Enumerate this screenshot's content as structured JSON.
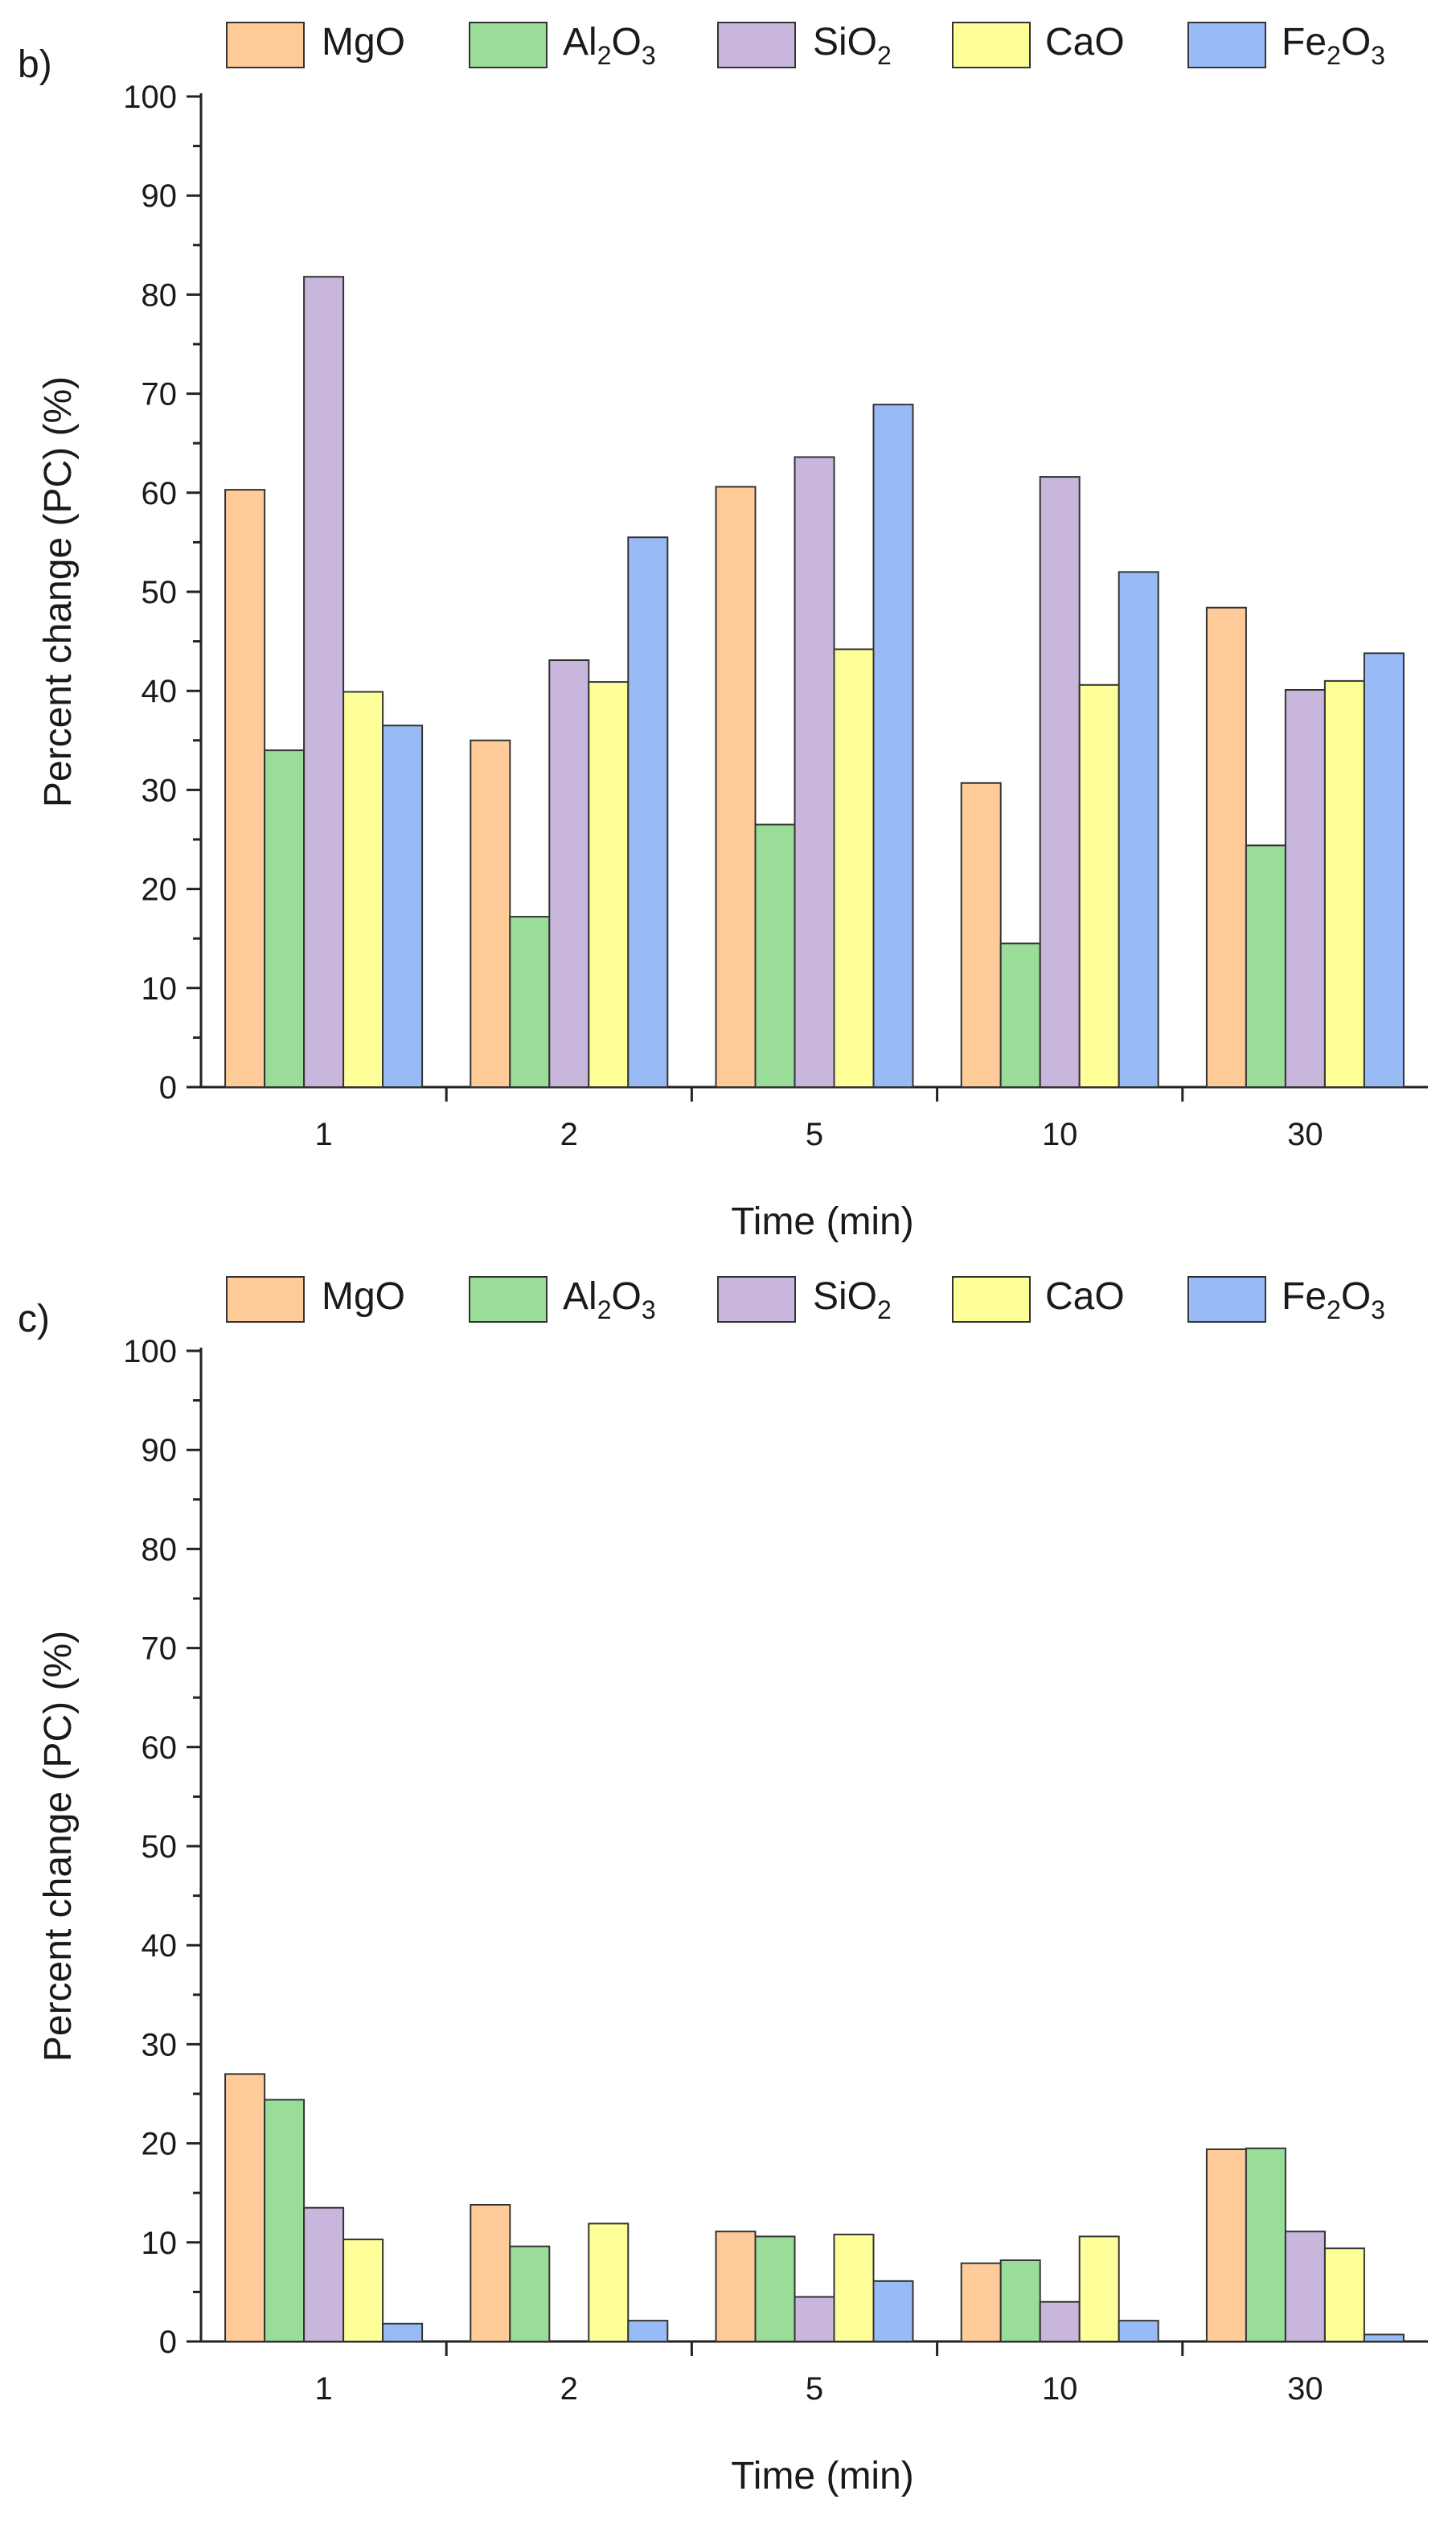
{
  "chart_data": [
    {
      "type": "bar",
      "panel_label": "b)",
      "xlabel": "Time (min)",
      "ylabel": "Percent change (PC) (%)",
      "ylim": [
        0,
        100
      ],
      "y_ticks": [
        "0",
        "10",
        "20",
        "30",
        "40",
        "50",
        "60",
        "70",
        "80",
        "90",
        "100"
      ],
      "categories": [
        "1",
        "2",
        "5",
        "10",
        "30"
      ],
      "legend_position": "top",
      "series": [
        {
          "name": "MgO",
          "base": "MgO",
          "sub": "",
          "tail": "",
          "color": "#FFCC99",
          "values": [
            60.3,
            35.0,
            60.6,
            30.7,
            48.4
          ]
        },
        {
          "name": "Al2O3",
          "base": "Al",
          "sub": "2",
          "tail": "O",
          "sub2": "3",
          "color": "#99DD99",
          "values": [
            34.0,
            17.2,
            26.5,
            14.5,
            24.4
          ]
        },
        {
          "name": "SiO2",
          "base": "SiO",
          "sub": "2",
          "tail": "",
          "color": "#C8B6DC",
          "values": [
            81.8,
            43.1,
            63.6,
            61.6,
            40.1
          ]
        },
        {
          "name": "CaO",
          "base": "CaO",
          "sub": "",
          "tail": "",
          "color": "#FFFF99",
          "values": [
            39.9,
            40.9,
            44.2,
            40.6,
            41.0
          ]
        },
        {
          "name": "Fe2O3",
          "base": "Fe",
          "sub": "2",
          "tail": "O",
          "sub2": "3",
          "color": "#99BBF5",
          "values": [
            36.5,
            55.5,
            68.9,
            52.0,
            43.8
          ]
        }
      ]
    },
    {
      "type": "bar",
      "panel_label": "c)",
      "xlabel": "Time (min)",
      "ylabel": "Percent change (PC) (%)",
      "ylim": [
        0,
        100
      ],
      "y_ticks": [
        "0",
        "10",
        "20",
        "30",
        "40",
        "50",
        "60",
        "70",
        "80",
        "90",
        "100"
      ],
      "categories": [
        "1",
        "2",
        "5",
        "10",
        "30"
      ],
      "legend_position": "top",
      "series": [
        {
          "name": "MgO",
          "base": "MgO",
          "sub": "",
          "tail": "",
          "color": "#FFCC99",
          "values": [
            27.0,
            13.8,
            11.1,
            7.9,
            19.4
          ]
        },
        {
          "name": "Al2O3",
          "base": "Al",
          "sub": "2",
          "tail": "O",
          "sub2": "3",
          "color": "#99DD99",
          "values": [
            24.4,
            9.6,
            10.6,
            8.2,
            19.5
          ]
        },
        {
          "name": "SiO2",
          "base": "SiO",
          "sub": "2",
          "tail": "",
          "color": "#C8B6DC",
          "values": [
            13.5,
            0.0,
            4.5,
            4.0,
            11.1
          ]
        },
        {
          "name": "CaO",
          "base": "CaO",
          "sub": "",
          "tail": "",
          "color": "#FFFF99",
          "values": [
            10.3,
            11.9,
            10.8,
            10.6,
            9.4
          ]
        },
        {
          "name": "Fe2O3",
          "base": "Fe",
          "sub": "2",
          "tail": "O",
          "sub2": "3",
          "color": "#99BBF5",
          "values": [
            1.8,
            2.1,
            6.1,
            2.1,
            0.7
          ]
        }
      ]
    }
  ]
}
